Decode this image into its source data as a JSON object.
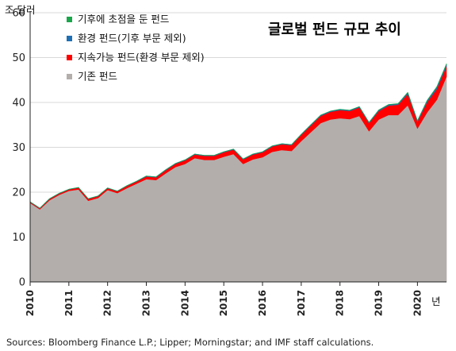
{
  "chart_data": {
    "type": "area",
    "title": "글로벌 펀드 규모 추이",
    "ylabel": "조 달러",
    "xlabel": "년",
    "ylim": [
      0,
      60
    ],
    "xlim": [
      2010,
      2020.75
    ],
    "yticks": [
      0,
      10,
      20,
      30,
      40,
      50,
      60
    ],
    "xticks": [
      "2010",
      "2011",
      "2012",
      "2013",
      "2014",
      "2015",
      "2016",
      "2017",
      "2018",
      "2019",
      "2020"
    ],
    "grid": "horizontal",
    "legend_position": "top-left",
    "stacked": true,
    "x": [
      2010,
      2010.25,
      2010.5,
      2010.75,
      2011,
      2011.25,
      2011.5,
      2011.75,
      2012,
      2012.25,
      2012.5,
      2012.75,
      2013,
      2013.25,
      2013.5,
      2013.75,
      2014,
      2014.25,
      2014.5,
      2014.75,
      2015,
      2015.25,
      2015.5,
      2015.75,
      2016,
      2016.25,
      2016.5,
      2016.75,
      2017,
      2017.25,
      2017.5,
      2017.75,
      2018,
      2018.25,
      2018.5,
      2018.75,
      2019,
      2019.25,
      2019.5,
      2019.75,
      2020,
      2020.25,
      2020.5,
      2020.75
    ],
    "series": [
      {
        "name": "기존 펀드",
        "color": "#b3aeac",
        "values": [
          17.6,
          16.2,
          18.2,
          19.4,
          20.3,
          20.6,
          18.1,
          18.7,
          20.5,
          19.8,
          20.9,
          21.9,
          22.9,
          22.7,
          24.2,
          25.6,
          26.3,
          27.6,
          27.2,
          27.2,
          27.9,
          28.5,
          26.3,
          27.3,
          27.8,
          29.0,
          29.4,
          29.2,
          31.4,
          33.4,
          35.4,
          36.2,
          36.5,
          36.3,
          37.0,
          33.6,
          36.2,
          37.2,
          37.2,
          39.4,
          34.2,
          37.8,
          40.6,
          45.8
        ]
      },
      {
        "name": "지속가능 펀드(환경 부문 제외)",
        "color": "#ff0000",
        "values": [
          0.2,
          0.2,
          0.3,
          0.3,
          0.3,
          0.4,
          0.4,
          0.4,
          0.4,
          0.4,
          0.5,
          0.5,
          0.6,
          0.6,
          0.7,
          0.7,
          0.8,
          0.8,
          0.9,
          0.9,
          1.0,
          1.0,
          1.0,
          1.1,
          1.1,
          1.2,
          1.3,
          1.3,
          1.4,
          1.5,
          1.6,
          1.7,
          1.8,
          1.8,
          1.9,
          1.8,
          1.9,
          2.1,
          2.3,
          2.5,
          1.5,
          2.3,
          2.4,
          2.3
        ]
      },
      {
        "name": "환경 펀드(기후 부문 제외)",
        "color": "#1f6fb4",
        "values": [
          0.05,
          0.05,
          0.05,
          0.05,
          0.05,
          0.05,
          0.05,
          0.05,
          0.05,
          0.05,
          0.05,
          0.05,
          0.1,
          0.1,
          0.1,
          0.1,
          0.1,
          0.1,
          0.1,
          0.1,
          0.1,
          0.1,
          0.1,
          0.1,
          0.1,
          0.1,
          0.1,
          0.1,
          0.1,
          0.15,
          0.15,
          0.15,
          0.15,
          0.15,
          0.15,
          0.15,
          0.2,
          0.2,
          0.2,
          0.3,
          0.2,
          0.3,
          0.4,
          0.4
        ]
      },
      {
        "name": "기후에 초점을 둔 펀드",
        "color": "#1aa64a",
        "values": [
          0.02,
          0.02,
          0.02,
          0.02,
          0.02,
          0.02,
          0.02,
          0.02,
          0.02,
          0.02,
          0.02,
          0.02,
          0.02,
          0.02,
          0.02,
          0.02,
          0.02,
          0.02,
          0.02,
          0.02,
          0.02,
          0.02,
          0.02,
          0.02,
          0.02,
          0.02,
          0.02,
          0.02,
          0.03,
          0.03,
          0.03,
          0.03,
          0.03,
          0.03,
          0.03,
          0.03,
          0.04,
          0.04,
          0.05,
          0.06,
          0.06,
          0.08,
          0.1,
          0.12
        ]
      }
    ],
    "legend": [
      {
        "label": "기후에 초점을 둔 펀드",
        "color": "#1aa64a"
      },
      {
        "label": "환경 펀드(기후 부문 제외)",
        "color": "#1f6fb4"
      },
      {
        "label": "지속가능 펀드(환경 부문 제외)",
        "color": "#ff0000"
      },
      {
        "label": "기존 펀드",
        "color": "#b3aeac"
      }
    ]
  },
  "source": "Sources: Bloomberg Finance L.P.; Lipper; Morningstar; and IMF staff calculations."
}
